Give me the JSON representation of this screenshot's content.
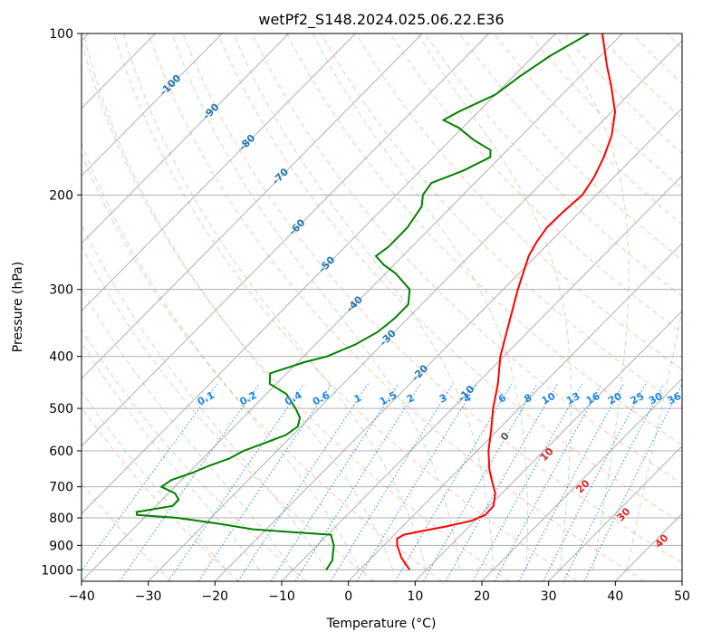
{
  "chart_data": {
    "type": "line",
    "title": "wetPf2_S148.2024.025.06.22.E36",
    "xlabel": "Temperature (°C)",
    "ylabel": "Pressure (hPa)",
    "xlim": [
      -40,
      50
    ],
    "ylim": [
      1050,
      100
    ],
    "y_scale": "log",
    "grid": true,
    "x_ticks": [
      -40,
      -30,
      -20,
      -10,
      0,
      10,
      20,
      30,
      40,
      50
    ],
    "y_ticks": [
      100,
      200,
      300,
      400,
      500,
      600,
      700,
      800,
      900,
      1000
    ],
    "x_tick_labels": [
      "−40",
      "−30",
      "−20",
      "−10",
      "0",
      "10",
      "20",
      "30",
      "40",
      "50"
    ],
    "y_tick_labels": [
      "100",
      "200",
      "300",
      "400",
      "500",
      "600",
      "700",
      "800",
      "900",
      "1000"
    ],
    "series": [
      {
        "color": "#ff0000",
        "pressure": [
          1000,
          950,
          900,
          875,
          860,
          850,
          830,
          810,
          790,
          760,
          720,
          680,
          650,
          600,
          550,
          500,
          450,
          400,
          350,
          300,
          260,
          245,
          230,
          215,
          200,
          185,
          170,
          155,
          140,
          125,
          115,
          100
        ],
        "temperature": [
          7.5,
          4.5,
          2.0,
          1.0,
          1.4,
          3.0,
          6.5,
          9.5,
          10.7,
          10.6,
          9.0,
          6.5,
          4.6,
          1.7,
          -0.9,
          -3.9,
          -6.8,
          -10.5,
          -13.9,
          -17.8,
          -21.1,
          -22.0,
          -22.6,
          -22.5,
          -22.1,
          -23.0,
          -24.5,
          -26.5,
          -29.5,
          -34.0,
          -37.5,
          -43.0
        ]
      },
      {
        "color": "#008000",
        "pressure": [
          1000,
          960,
          930,
          900,
          880,
          860,
          850,
          840,
          820,
          800,
          790,
          780,
          760,
          740,
          720,
          700,
          680,
          660,
          640,
          620,
          600,
          580,
          560,
          540,
          520,
          500,
          470,
          450,
          430,
          410,
          400,
          380,
          360,
          340,
          320,
          300,
          280,
          270,
          260,
          250,
          230,
          210,
          200,
          190,
          180,
          170,
          165,
          158,
          150,
          145,
          140,
          130,
          120,
          110,
          100
        ],
        "temperature": [
          -5.0,
          -5.5,
          -6.5,
          -7.5,
          -8.5,
          -9.5,
          -16.0,
          -22.0,
          -28.0,
          -35.0,
          -41.5,
          -42.0,
          -37.5,
          -37.5,
          -39.0,
          -42.0,
          -41.5,
          -39.5,
          -38.0,
          -36.0,
          -35.0,
          -33.0,
          -31.0,
          -30.5,
          -31.5,
          -33.5,
          -37.0,
          -41.0,
          -42.5,
          -39.0,
          -36.5,
          -34.0,
          -32.5,
          -32.0,
          -32.0,
          -34.0,
          -38.5,
          -41.5,
          -44.0,
          -43.5,
          -43.5,
          -44.5,
          -46.0,
          -46.5,
          -43.5,
          -41.5,
          -42.5,
          -46.5,
          -50.5,
          -54.0,
          -53.0,
          -50.0,
          -49.0,
          -47.5,
          -45.0
        ]
      }
    ],
    "isotherm_labels": [
      {
        "value": -100,
        "text": "-100"
      },
      {
        "value": -90,
        "text": "-90"
      },
      {
        "value": -80,
        "text": "-80"
      },
      {
        "value": -70,
        "text": "-70"
      },
      {
        "value": -60,
        "text": "-60"
      },
      {
        "value": -50,
        "text": "-50"
      },
      {
        "value": -40,
        "text": "-40"
      },
      {
        "value": -30,
        "text": "-30"
      },
      {
        "value": -20,
        "text": "-20"
      },
      {
        "value": -10,
        "text": "-10"
      }
    ],
    "mixing_ratio_labels": [
      "0.1",
      "0.2",
      "0.4",
      "0.6",
      "1",
      "1.5",
      "2",
      "3",
      "4",
      "6",
      "8",
      "10",
      "13",
      "16",
      "20",
      "25",
      "30",
      "36"
    ],
    "red_labels": [
      "0",
      "10",
      "20",
      "30",
      "40"
    ],
    "colors": {
      "temperature": "#ff0000",
      "dewpoint": "#008000",
      "isotherm_label": "#1f77b4",
      "mixing_ratio": "#1e88e5",
      "moist_label": "#d62728",
      "dry_adiabat": "#ff7f50",
      "moist_adiabat": "#2ca02c",
      "grid": "#b0b0b0"
    }
  }
}
